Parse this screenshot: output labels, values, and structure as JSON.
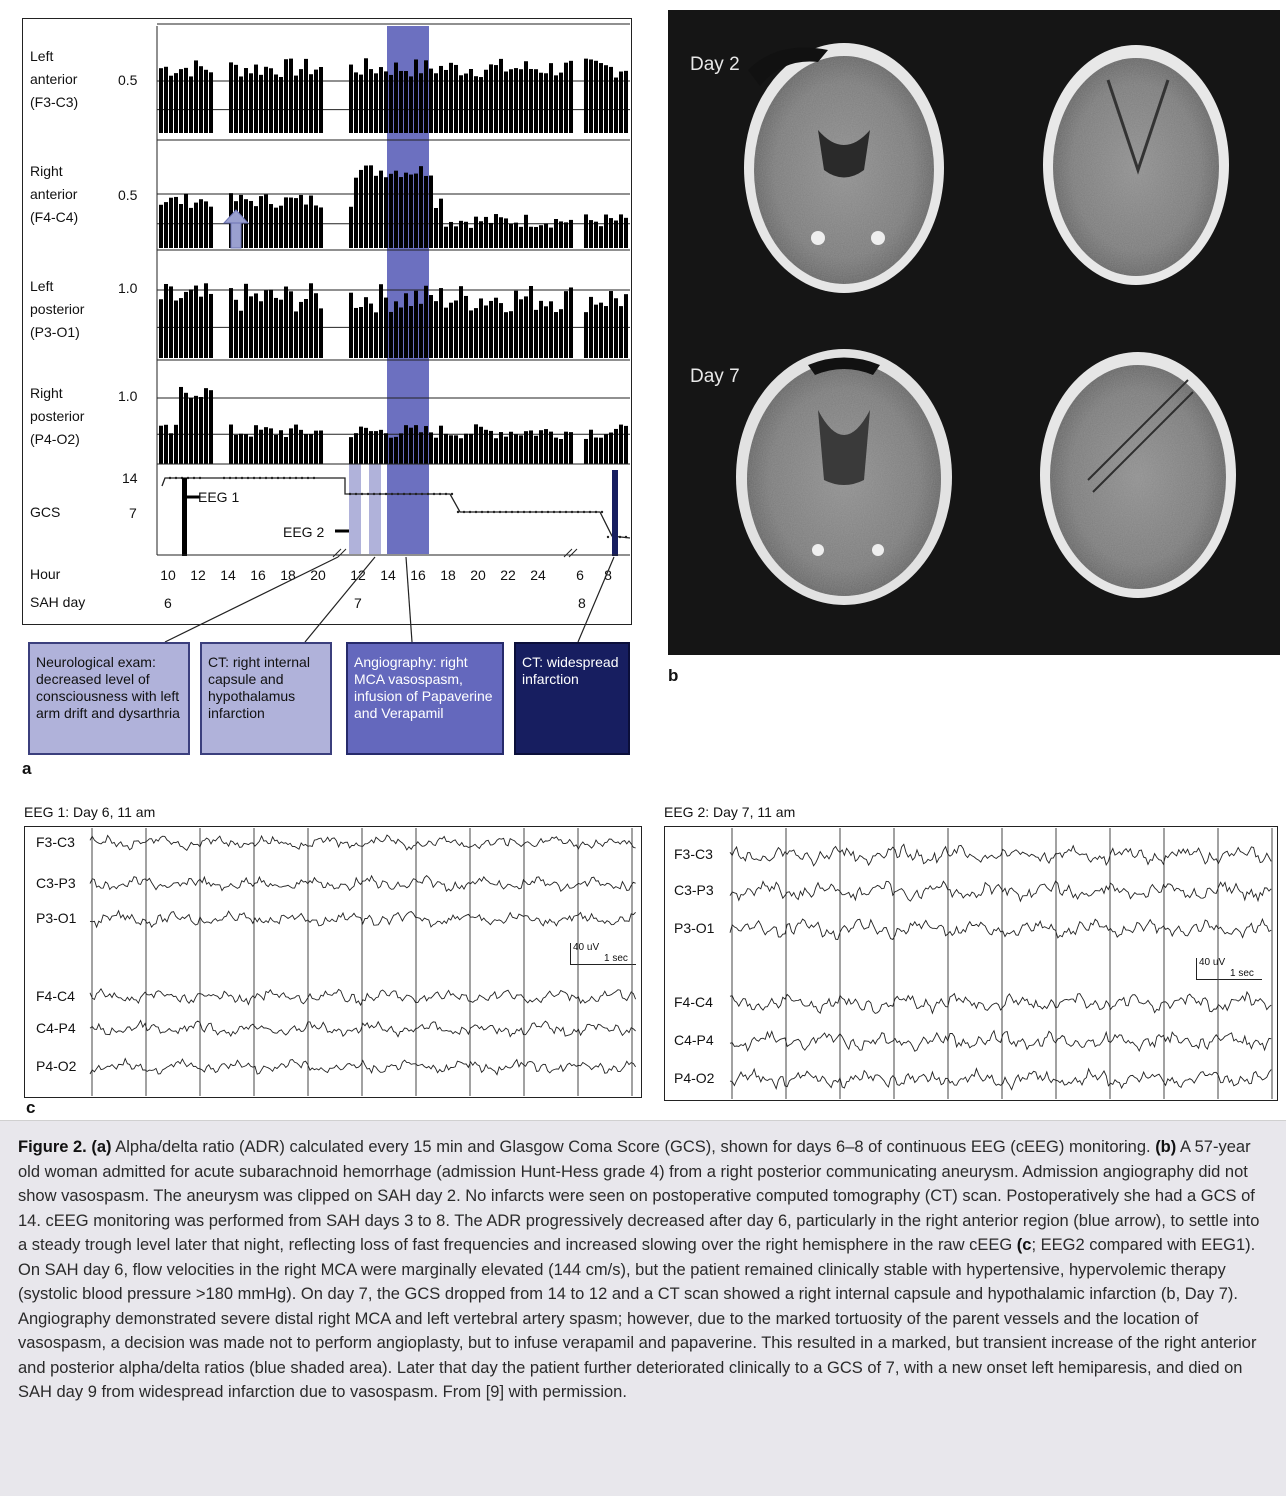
{
  "chart_data": [
    {
      "type": "bar",
      "panel": "a",
      "rows": [
        {
          "label_lines": [
            "Left",
            "anterior",
            "(F3-C3)"
          ],
          "ref_value": "0.5"
        },
        {
          "label_lines": [
            "Right",
            "anterior",
            "(F4-C4)"
          ],
          "ref_value": "0.5"
        },
        {
          "label_lines": [
            "Left",
            "posterior",
            "(P3-O1)"
          ],
          "ref_value": "1.0"
        },
        {
          "label_lines": [
            "Right",
            "posterior",
            "(P4-O2)"
          ],
          "ref_value": "1.0"
        }
      ],
      "gcs": {
        "label": "GCS",
        "ticks": [
          "14",
          "7"
        ],
        "values_by_segment": [
          14,
          14,
          12,
          11,
          7,
          3
        ]
      },
      "eeg_markers": [
        "EEG 1",
        "EEG 2"
      ],
      "x_axis": {
        "label": "Hour",
        "ticks": [
          "10",
          "12",
          "14",
          "16",
          "18",
          "20",
          "12",
          "14",
          "16",
          "18",
          "20",
          "22",
          "24",
          "6",
          "8"
        ]
      },
      "day_axis": {
        "label": "SAH day",
        "ticks": [
          "6",
          "7",
          "8"
        ]
      },
      "events": [
        {
          "text": "Neurological exam: decreased level of consciousness with left arm drift and dysarthria",
          "color": "#b0b2da"
        },
        {
          "text": "CT: right internal capsule and hypothalamus infarction",
          "color": "#b0b2da"
        },
        {
          "text": "Angiography: right MCA vasospasm, infusion of Papaverine and Verapamil",
          "color": "#6468bd"
        },
        {
          "text": "CT: widespread infarction",
          "color": "#171e60"
        }
      ],
      "panel_letter": "a"
    }
  ],
  "ct": {
    "labels": [
      "Day 2",
      "Day 7"
    ],
    "panel_letter": "b"
  },
  "eeg": {
    "panel_letter": "c",
    "recordings": [
      {
        "title": "EEG 1: Day 6, 11 am",
        "channels": [
          "F3-C3",
          "C3-P3",
          "P3-O1",
          "F4-C4",
          "C4-P4",
          "P4-O2"
        ],
        "scale_uv": "40 uV",
        "scale_time": "1 sec"
      },
      {
        "title": "EEG 2: Day 7, 11 am",
        "channels": [
          "F3-C3",
          "C3-P3",
          "P3-O1",
          "F4-C4",
          "C4-P4",
          "P4-O2"
        ],
        "scale_uv": "40 uV",
        "scale_time": "1 sec"
      }
    ]
  },
  "caption": {
    "fig_label": "Figure 2.",
    "a_mark": "(a)",
    "a_text": " Alpha/delta ratio (ADR) calculated every 15 min and Glasgow Coma Score (GCS), shown for days 6–8 of continuous EEG (cEEG) monitoring. ",
    "b_mark": "(b)",
    "b_text": " A 57-year old woman admitted for acute subarachnoid hemorrhage (admission Hunt-Hess grade 4) from a right posterior communicating aneurysm. Admission angiography did not show vasospasm. The aneurysm was clipped on SAH day 2. No infarcts were seen on postoperative computed tomography (CT) scan. Postoperatively she had a GCS of 14. cEEG monitoring was performed from SAH days 3 to 8. The ADR progressively decreased after day 6, particularly in the right anterior region (blue arrow), to settle into a steady trough level later that night, reflecting loss of fast frequencies and increased slowing over the right hemisphere in the raw cEEG ",
    "c_mark": "(c",
    "c_text": "; EEG2 compared with EEG1). On SAH day 6, flow velocities in the right MCA were marginally elevated (144 cm/s), but the patient remained clinically stable with hypertensive, hypervolemic therapy (systolic blood pressure >180 mmHg). On day 7, the GCS dropped from 14 to 12 and a CT scan showed a right internal capsule and hypothalamic infarction (b, Day 7). Angiography demonstrated severe distal right MCA and left vertebral artery spasm; however, due to the marked tortuosity of the parent vessels and the location of vasospasm, a decision was made not to perform angioplasty, but to infuse verapamil and papaverine. This resulted in a marked, but transient increase of the right anterior and posterior alpha/delta ratios (blue shaded area). Later that day the patient further deteriorated clinically to a GCS of 7, with a new onset left hemiparesis, and died on SAH day 9 from widespread infarction due to vasospasm. From [9] with permission.",
    "close_paren": ")"
  }
}
